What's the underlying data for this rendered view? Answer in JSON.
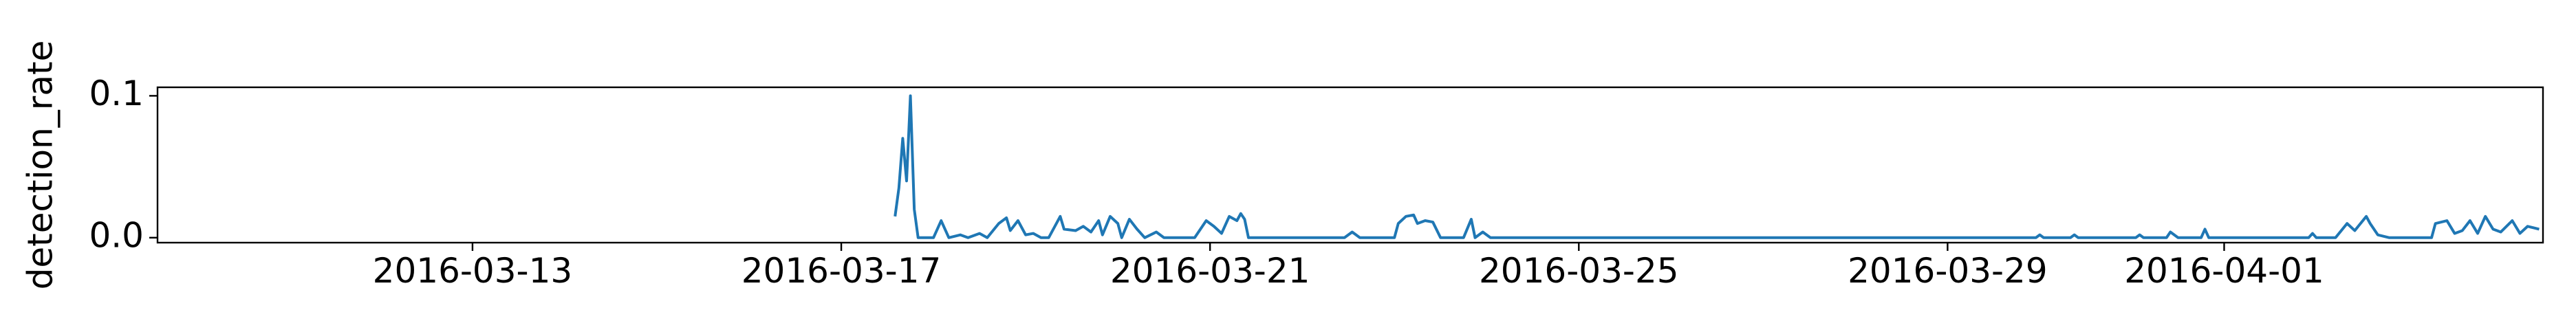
{
  "chart_data": {
    "type": "line",
    "ylabel": "detection_rate",
    "color": "#1f77b4",
    "xlim": [
      "2016-03-09T14:00",
      "2016-04-04T11:00"
    ],
    "xticks": [
      "2016-03-13",
      "2016-03-17",
      "2016-03-21",
      "2016-03-25",
      "2016-03-29",
      "2016-04-01"
    ],
    "ylim": [
      -0.0035,
      0.106
    ],
    "yticks": [
      {
        "value": 0,
        "label": "0.0"
      },
      {
        "value": 0.1,
        "label": "0.1"
      }
    ],
    "x": [
      "2016-03-17T14:00",
      "2016-03-17T15:00",
      "2016-03-17T16:00",
      "2016-03-17T17:00",
      "2016-03-17T18:00",
      "2016-03-17T19:00",
      "2016-03-17T20:00",
      "2016-03-18T00:00",
      "2016-03-18T02:00",
      "2016-03-18T04:00",
      "2016-03-18T07:00",
      "2016-03-18T09:00",
      "2016-03-18T12:00",
      "2016-03-18T14:00",
      "2016-03-18T17:00",
      "2016-03-18T19:00",
      "2016-03-18T20:00",
      "2016-03-18T22:00",
      "2016-03-19T00:00",
      "2016-03-19T02:00",
      "2016-03-19T04:00",
      "2016-03-19T06:00",
      "2016-03-19T09:00",
      "2016-03-19T10:00",
      "2016-03-19T13:00",
      "2016-03-19T15:00",
      "2016-03-19T17:00",
      "2016-03-19T19:00",
      "2016-03-19T20:00",
      "2016-03-19T22:00",
      "2016-03-20T00:00",
      "2016-03-20T01:00",
      "2016-03-20T03:00",
      "2016-03-20T05:00",
      "2016-03-20T07:00",
      "2016-03-20T10:00",
      "2016-03-20T12:00",
      "2016-03-20T18:00",
      "2016-03-20T20:00",
      "2016-03-20T23:00",
      "2016-03-21T01:00",
      "2016-03-21T03:00",
      "2016-03-21T05:00",
      "2016-03-21T07:00",
      "2016-03-21T08:00",
      "2016-03-21T09:00",
      "2016-03-21T10:00",
      "2016-03-22T11:00",
      "2016-03-22T13:00",
      "2016-03-22T15:00",
      "2016-03-23T00:00",
      "2016-03-23T01:00",
      "2016-03-23T03:00",
      "2016-03-23T05:00",
      "2016-03-23T06:00",
      "2016-03-23T08:00",
      "2016-03-23T10:00",
      "2016-03-23T12:00",
      "2016-03-23T18:00",
      "2016-03-23T20:00",
      "2016-03-23T21:00",
      "2016-03-23T23:00",
      "2016-03-24T01:00",
      "2016-03-29T23:00",
      "2016-03-30T00:00",
      "2016-03-30T01:00",
      "2016-03-30T08:00",
      "2016-03-30T09:00",
      "2016-03-30T10:00",
      "2016-03-31T01:00",
      "2016-03-31T02:00",
      "2016-03-31T03:00",
      "2016-03-31T09:00",
      "2016-03-31T10:00",
      "2016-03-31T12:00",
      "2016-03-31T18:00",
      "2016-03-31T19:00",
      "2016-03-31T20:00",
      "2016-04-01T22:00",
      "2016-04-01T23:00",
      "2016-04-02T00:00",
      "2016-04-02T05:00",
      "2016-04-02T08:00",
      "2016-04-02T10:00",
      "2016-04-02T13:00",
      "2016-04-02T14:00",
      "2016-04-02T16:00",
      "2016-04-02T19:00",
      "2016-04-03T06:00",
      "2016-04-03T07:00",
      "2016-04-03T10:00",
      "2016-04-03T12:00",
      "2016-04-03T14:00",
      "2016-04-03T16:00",
      "2016-04-03T18:00",
      "2016-04-03T20:00",
      "2016-04-03T22:00",
      "2016-04-04T00:00",
      "2016-04-04T03:00",
      "2016-04-04T05:00",
      "2016-04-04T07:00",
      "2016-04-04T10:00"
    ],
    "values": [
      0.015,
      0.035,
      0.07,
      0.04,
      0.1,
      0.02,
      0,
      0,
      0.012,
      0,
      0.002,
      0,
      0.003,
      0,
      0.01,
      0.014,
      0.005,
      0.012,
      0.002,
      0.003,
      0,
      0,
      0.015,
      0.006,
      0.005,
      0.008,
      0.004,
      0.012,
      0.002,
      0.015,
      0.01,
      0,
      0.013,
      0.006,
      0,
      0.004,
      0,
      0,
      0,
      0.012,
      0.008,
      0.003,
      0.015,
      0.012,
      0.017,
      0.013,
      0,
      0,
      0.004,
      0,
      0,
      0.01,
      0.015,
      0.016,
      0.01,
      0.012,
      0.011,
      0,
      0,
      0.013,
      0,
      0.004,
      0,
      0,
      0.002,
      0,
      0,
      0.002,
      0,
      0,
      0.002,
      0,
      0,
      0.004,
      0,
      0,
      0.006,
      0,
      0,
      0.003,
      0,
      0,
      0.01,
      0.005,
      0.015,
      0.01,
      0.002,
      0,
      0,
      0.01,
      0.012,
      0.003,
      0.005,
      0.012,
      0.003,
      0.015,
      0.006,
      0.004,
      0.012,
      0.003,
      0.008,
      0.006
    ]
  }
}
